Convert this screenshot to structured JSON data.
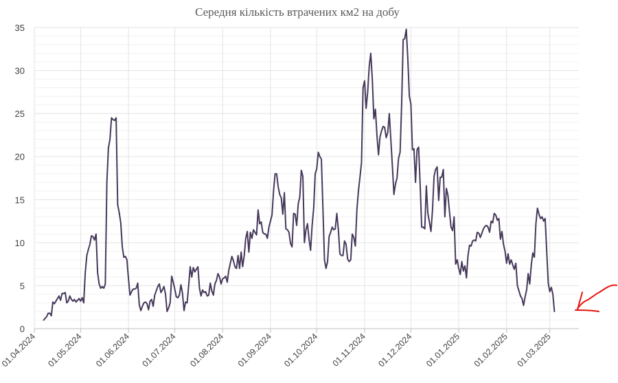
{
  "chart_data": {
    "type": "line",
    "title": "Середня кількість втрачених км2 на добу",
    "xlabel": "",
    "ylabel": "",
    "ylim": [
      0,
      35
    ],
    "yticks": [
      "0",
      "5",
      "10",
      "15",
      "20",
      "25",
      "30",
      "35"
    ],
    "xticks": [
      "01.04.2024",
      "01.05.2024",
      "01.06.2024",
      "01.07.2024",
      "01.08.2024",
      "01.09.2024",
      "01.10.2024",
      "01.11.2024",
      "01.12.2024",
      "01.01.2025",
      "01.02.2025",
      "01.03.2025"
    ],
    "grid": true,
    "legend": "none",
    "colors": {
      "line": "#46385a",
      "grid": "#e3e3e3",
      "annotation": "#e8120c"
    },
    "annotation": "red-hand-drawn-arrow-pointing-at-last-value",
    "series": [
      {
        "x_start": "2024-04-07",
        "step_days": 1,
        "values": [
          1.0,
          1.2,
          1.4,
          1.8,
          1.8,
          1.5,
          3.1,
          2.9,
          3.2,
          3.5,
          3.8,
          3.3,
          4.1,
          4.1,
          4.2,
          3.0,
          3.2,
          3.8,
          3.4,
          3.2,
          3.4,
          3.1,
          3.3,
          3.5,
          3.2,
          3.6,
          3.0,
          6.5,
          8.5,
          9.2,
          9.8,
          10.8,
          10.7,
          10.3,
          11.0,
          6.5,
          5.2,
          4.7,
          4.9,
          4.7,
          5.2,
          17.0,
          21.0,
          22.0,
          24.5,
          24.3,
          24.2,
          24.5,
          14.4,
          13.5,
          12.3,
          9.5,
          8.3,
          8.4,
          8.0,
          5.8,
          3.9,
          4.3,
          4.6,
          4.6,
          4.7,
          5.3,
          2.8,
          2.1,
          2.6,
          3.0,
          3.1,
          2.9,
          2.2,
          3.2,
          3.4,
          2.6,
          3.9,
          4.4,
          4.9,
          5.2,
          4.2,
          4.5,
          4.9,
          4.0,
          2.0,
          2.4,
          3.0,
          6.1,
          5.4,
          4.6,
          3.7,
          3.6,
          3.9,
          5.1,
          4.1,
          2.1,
          3.1,
          3.0,
          5.0,
          7.2,
          6.0,
          7.1,
          6.6,
          6.9,
          7.2,
          4.7,
          3.8,
          4.5,
          4.2,
          4.3,
          3.8,
          3.9,
          5.3,
          4.4,
          3.9,
          5.2,
          5.6,
          6.4,
          6.0,
          5.2,
          5.8,
          5.9,
          6.1,
          5.4,
          6.8,
          7.6,
          8.4,
          7.9,
          7.2,
          7.0,
          8.5,
          7.0,
          8.9,
          7.2,
          8.5,
          10.5,
          11.3,
          8.9,
          11.2,
          10.5,
          11.5,
          11.2,
          10.9,
          13.8,
          12.2,
          12.4,
          11.2,
          11.0,
          11.0,
          10.5,
          11.8,
          12.5,
          13.2,
          16.0,
          18.0,
          18.0,
          16.5,
          15.6,
          15.2,
          13.3,
          15.8,
          11.6,
          11.5,
          11.2,
          9.9,
          9.5,
          13.4,
          13.3,
          12.0,
          14.5,
          15.3,
          18.4,
          17.7,
          10.0,
          11.5,
          12.2,
          10.4,
          9.1,
          12.0,
          14.0,
          18.0,
          18.6,
          20.5,
          20.0,
          19.7,
          14.0,
          8.0,
          7.0,
          7.8,
          10.7,
          11.2,
          11.8,
          11.5,
          11.6,
          13.4,
          11.5,
          8.7,
          8.5,
          8.5,
          10.2,
          9.8,
          8.1,
          7.8,
          8.0,
          11.0,
          10.6,
          9.6,
          13.8,
          16.0,
          17.6,
          19.3,
          28.0,
          28.8,
          25.6,
          27.5,
          30.5,
          32.0,
          29.0,
          24.4,
          25.5,
          22.5,
          20.2,
          22.3,
          23.0,
          23.5,
          23.4,
          22.2,
          22.8,
          25.0,
          22.0,
          18.9,
          15.6,
          16.8,
          17.5,
          19.8,
          20.5,
          26.0,
          33.6,
          33.7,
          34.8,
          31.4,
          27.0,
          26.1,
          20.8,
          20.9,
          17.0,
          20.8,
          21.1,
          16.7,
          11.8,
          11.8,
          11.6,
          16.6,
          13.4,
          12.4,
          11.3,
          13.8,
          17.7,
          18.5,
          18.8,
          14.9,
          17.6,
          17.6,
          18.5,
          13.0,
          16.3,
          15.5,
          13.6,
          11.8,
          11.4,
          13.0,
          7.5,
          8.0,
          7.0,
          6.3,
          7.8,
          6.7,
          7.3,
          5.9,
          8.5,
          9.7,
          9.6,
          10.2,
          10.3,
          10.2,
          11.2,
          11.1,
          10.6,
          11.1,
          11.6,
          11.9,
          12.0,
          11.8,
          11.2,
          12.5,
          12.3,
          13.4,
          13.2,
          12.6,
          12.8,
          10.4,
          11.3,
          9.8,
          9.0,
          7.6,
          8.7,
          7.5,
          8.0,
          7.4,
          6.9,
          7.6,
          5.0,
          4.4,
          3.8,
          3.5,
          2.7,
          3.7,
          4.5,
          6.4,
          5.2,
          7.4,
          8.8,
          8.3,
          12.2,
          14.0,
          13.3,
          12.8,
          13.0,
          12.5,
          12.8,
          9.0,
          5.3,
          4.3,
          4.8,
          4.0,
          2.0
        ]
      }
    ]
  }
}
